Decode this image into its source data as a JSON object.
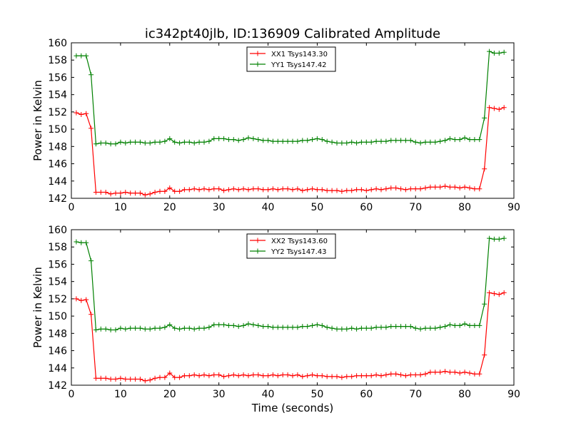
{
  "title": "ic342pt40jlb, ID:136909 Calibrated Amplitude",
  "chart_data": [
    {
      "type": "line",
      "xlabel": "",
      "ylabel": "Power in Kelvin",
      "xlim": [
        0,
        90
      ],
      "ylim": [
        142,
        160
      ],
      "xticks": [
        "0",
        "10",
        "20",
        "30",
        "40",
        "50",
        "60",
        "70",
        "80",
        "90"
      ],
      "yticks": [
        "142",
        "144",
        "146",
        "148",
        "150",
        "152",
        "154",
        "156",
        "158",
        "160"
      ],
      "grid": false,
      "legend_position": "top-center",
      "x": [
        1,
        2,
        3,
        4,
        5,
        6,
        7,
        8,
        9,
        10,
        11,
        12,
        13,
        14,
        15,
        16,
        17,
        18,
        19,
        20,
        21,
        22,
        23,
        24,
        25,
        26,
        27,
        28,
        29,
        30,
        31,
        32,
        33,
        34,
        35,
        36,
        37,
        38,
        39,
        40,
        41,
        42,
        43,
        44,
        45,
        46,
        47,
        48,
        49,
        50,
        51,
        52,
        53,
        54,
        55,
        56,
        57,
        58,
        59,
        60,
        61,
        62,
        63,
        64,
        65,
        66,
        67,
        68,
        69,
        70,
        71,
        72,
        73,
        74,
        75,
        76,
        77,
        78,
        79,
        80,
        81,
        82,
        83,
        84,
        85,
        86,
        87,
        88
      ],
      "series": [
        {
          "name": "XX1 Tsys143.30",
          "color": "#ff0000",
          "values": [
            151.9,
            151.7,
            151.8,
            150.1,
            142.7,
            142.7,
            142.7,
            142.5,
            142.6,
            142.6,
            142.7,
            142.6,
            142.6,
            142.6,
            142.4,
            142.5,
            142.7,
            142.8,
            142.8,
            143.2,
            142.8,
            142.8,
            143.0,
            143.0,
            143.1,
            143.0,
            143.1,
            143.0,
            143.1,
            143.1,
            142.9,
            143.0,
            143.1,
            143.0,
            143.1,
            143.0,
            143.1,
            143.1,
            143.0,
            143.0,
            143.1,
            143.0,
            143.1,
            143.1,
            143.0,
            143.1,
            142.9,
            143.0,
            143.1,
            143.0,
            143.0,
            142.9,
            142.9,
            142.9,
            142.8,
            142.9,
            142.9,
            143.0,
            143.0,
            142.9,
            143.0,
            143.1,
            143.0,
            143.1,
            143.2,
            143.2,
            143.1,
            143.0,
            143.1,
            143.1,
            143.1,
            143.2,
            143.3,
            143.3,
            143.3,
            143.4,
            143.3,
            143.3,
            143.2,
            143.3,
            143.2,
            143.1,
            143.1,
            145.4,
            152.5,
            152.4,
            152.3,
            152.5
          ]
        },
        {
          "name": "YY1 Tsys147.42",
          "color": "#008000",
          "values": [
            158.5,
            158.5,
            158.5,
            156.3,
            148.3,
            148.4,
            148.4,
            148.3,
            148.3,
            148.5,
            148.4,
            148.5,
            148.5,
            148.5,
            148.4,
            148.4,
            148.5,
            148.5,
            148.6,
            148.9,
            148.5,
            148.4,
            148.5,
            148.5,
            148.4,
            148.5,
            148.5,
            148.6,
            148.9,
            148.9,
            148.9,
            148.8,
            148.8,
            148.7,
            148.8,
            149.0,
            148.9,
            148.8,
            148.7,
            148.7,
            148.6,
            148.6,
            148.6,
            148.6,
            148.6,
            148.6,
            148.7,
            148.7,
            148.8,
            148.9,
            148.8,
            148.6,
            148.5,
            148.4,
            148.4,
            148.4,
            148.5,
            148.4,
            148.5,
            148.5,
            148.5,
            148.6,
            148.6,
            148.6,
            148.7,
            148.7,
            148.7,
            148.7,
            148.7,
            148.5,
            148.4,
            148.5,
            148.5,
            148.5,
            148.6,
            148.7,
            148.9,
            148.8,
            148.8,
            149.0,
            148.8,
            148.8,
            148.8,
            151.3,
            159.0,
            158.8,
            158.8,
            158.9
          ]
        }
      ]
    },
    {
      "type": "line",
      "xlabel": "Time (seconds)",
      "ylabel": "Power in Kelvin",
      "xlim": [
        0,
        90
      ],
      "ylim": [
        142,
        160
      ],
      "xticks": [
        "0",
        "10",
        "20",
        "30",
        "40",
        "50",
        "60",
        "70",
        "80",
        "90"
      ],
      "yticks": [
        "142",
        "144",
        "146",
        "148",
        "150",
        "152",
        "154",
        "156",
        "158",
        "160"
      ],
      "grid": false,
      "legend_position": "top-center",
      "x": [
        1,
        2,
        3,
        4,
        5,
        6,
        7,
        8,
        9,
        10,
        11,
        12,
        13,
        14,
        15,
        16,
        17,
        18,
        19,
        20,
        21,
        22,
        23,
        24,
        25,
        26,
        27,
        28,
        29,
        30,
        31,
        32,
        33,
        34,
        35,
        36,
        37,
        38,
        39,
        40,
        41,
        42,
        43,
        44,
        45,
        46,
        47,
        48,
        49,
        50,
        51,
        52,
        53,
        54,
        55,
        56,
        57,
        58,
        59,
        60,
        61,
        62,
        63,
        64,
        65,
        66,
        67,
        68,
        69,
        70,
        71,
        72,
        73,
        74,
        75,
        76,
        77,
        78,
        79,
        80,
        81,
        82,
        83,
        84,
        85,
        86,
        87,
        88
      ],
      "series": [
        {
          "name": "XX2 Tsys143.60",
          "color": "#ff0000",
          "values": [
            152.0,
            151.8,
            151.9,
            150.2,
            142.8,
            142.8,
            142.8,
            142.7,
            142.7,
            142.8,
            142.7,
            142.7,
            142.7,
            142.7,
            142.5,
            142.6,
            142.8,
            142.9,
            142.9,
            143.4,
            142.9,
            142.9,
            143.1,
            143.1,
            143.2,
            143.1,
            143.2,
            143.1,
            143.2,
            143.2,
            143.0,
            143.1,
            143.2,
            143.1,
            143.2,
            143.1,
            143.2,
            143.2,
            143.1,
            143.1,
            143.2,
            143.1,
            143.2,
            143.2,
            143.1,
            143.2,
            143.0,
            143.1,
            143.2,
            143.1,
            143.1,
            143.0,
            143.0,
            143.0,
            142.9,
            143.0,
            143.0,
            143.1,
            143.1,
            143.1,
            143.1,
            143.2,
            143.1,
            143.2,
            143.3,
            143.3,
            143.2,
            143.1,
            143.2,
            143.2,
            143.2,
            143.3,
            143.5,
            143.5,
            143.5,
            143.6,
            143.5,
            143.5,
            143.4,
            143.5,
            143.4,
            143.3,
            143.3,
            145.5,
            152.7,
            152.6,
            152.5,
            152.7
          ]
        },
        {
          "name": "YY2 Tsys147.43",
          "color": "#008000",
          "values": [
            158.6,
            158.5,
            158.5,
            156.4,
            148.4,
            148.5,
            148.5,
            148.4,
            148.4,
            148.6,
            148.5,
            148.6,
            148.6,
            148.6,
            148.5,
            148.5,
            148.6,
            148.6,
            148.7,
            149.0,
            148.6,
            148.5,
            148.6,
            148.6,
            148.5,
            148.6,
            148.6,
            148.7,
            149.0,
            149.0,
            149.0,
            148.9,
            148.9,
            148.8,
            148.9,
            149.1,
            149.0,
            148.9,
            148.8,
            148.8,
            148.7,
            148.7,
            148.7,
            148.7,
            148.7,
            148.7,
            148.8,
            148.8,
            148.9,
            149.0,
            148.9,
            148.7,
            148.6,
            148.5,
            148.5,
            148.5,
            148.6,
            148.5,
            148.6,
            148.6,
            148.6,
            148.7,
            148.7,
            148.7,
            148.8,
            148.8,
            148.8,
            148.8,
            148.8,
            148.6,
            148.5,
            148.6,
            148.6,
            148.6,
            148.7,
            148.8,
            149.0,
            148.9,
            148.9,
            149.1,
            148.9,
            148.9,
            148.9,
            151.4,
            159.0,
            158.9,
            158.9,
            159.0
          ]
        }
      ]
    }
  ]
}
